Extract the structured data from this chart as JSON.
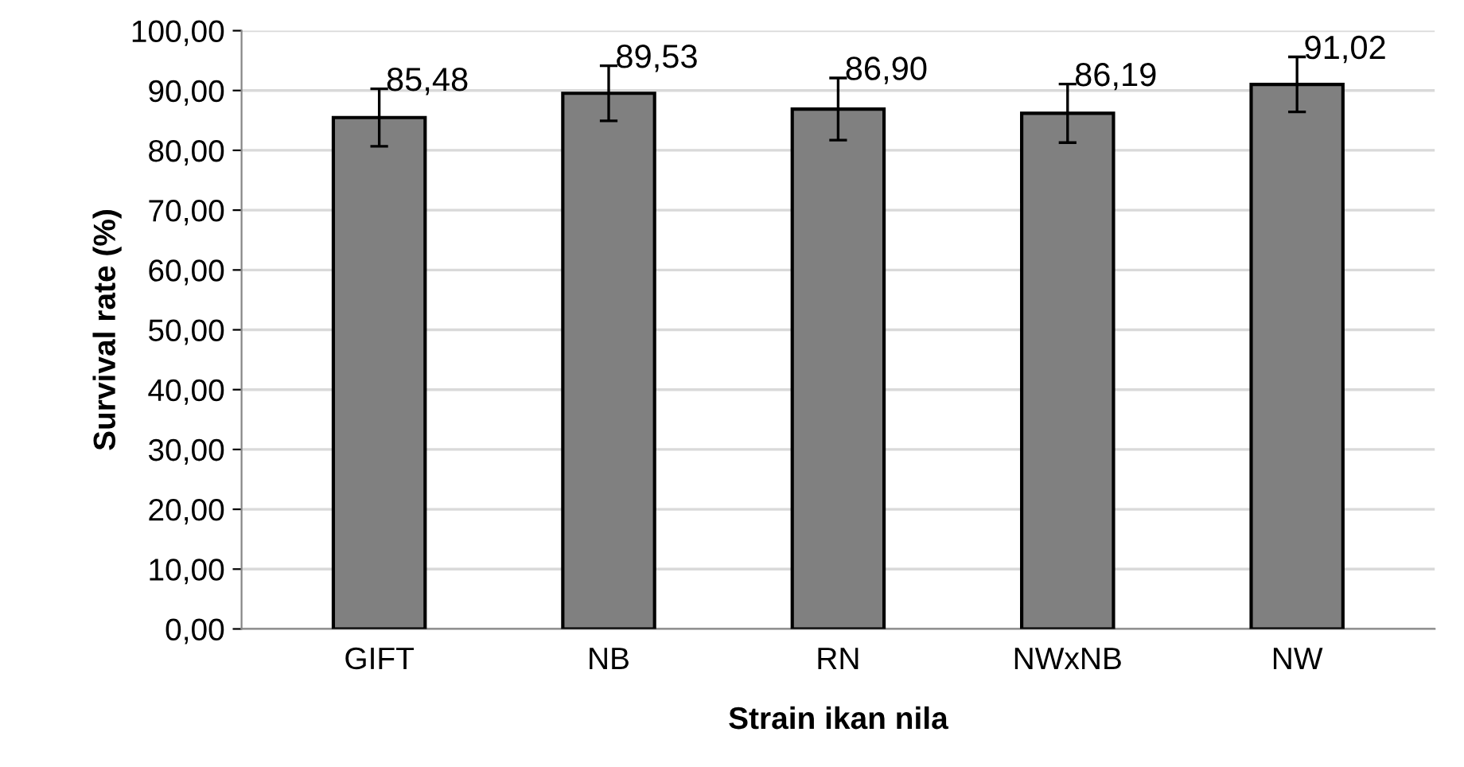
{
  "chart_data": {
    "type": "bar",
    "xlabel": "Strain ikan nila",
    "ylabel": "Survival rate (%)",
    "categories": [
      "GIFT",
      "NB",
      "RN",
      "NWxNB",
      "NW"
    ],
    "values": [
      85.48,
      89.53,
      86.9,
      86.19,
      91.02
    ],
    "errors": [
      4.8,
      4.6,
      5.2,
      4.9,
      4.6
    ],
    "value_labels": [
      "85,48",
      "89,53",
      "86,90",
      "86,19",
      "91,02"
    ],
    "color": "#808080",
    "ylim": [
      0,
      100
    ],
    "yticks": [
      {
        "value": 0,
        "label": "0,00"
      },
      {
        "value": 10,
        "label": "10,00"
      },
      {
        "value": 20,
        "label": "20,00"
      },
      {
        "value": 30,
        "label": "30,00"
      },
      {
        "value": 40,
        "label": "40,00"
      },
      {
        "value": 50,
        "label": "50,00"
      },
      {
        "value": 60,
        "label": "60,00"
      },
      {
        "value": 70,
        "label": "70,00"
      },
      {
        "value": 80,
        "label": "80,00"
      },
      {
        "value": 90,
        "label": "90,00"
      },
      {
        "value": 100,
        "label": "100,00"
      }
    ],
    "grid": "y"
  }
}
